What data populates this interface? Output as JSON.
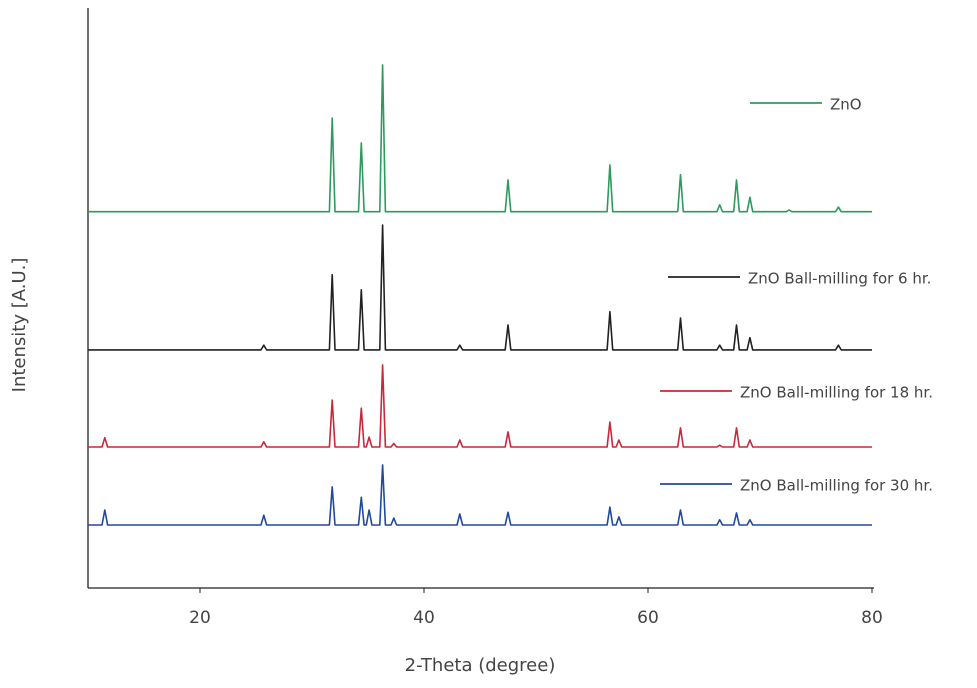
{
  "chart_data": {
    "type": "line",
    "xlabel": "2-Theta (degree)",
    "ylabel": "Intensity [A.U.]",
    "xlim": [
      10,
      80
    ],
    "xticks": [
      20,
      40,
      60,
      80
    ],
    "ylim": [
      0,
      100
    ],
    "x": [
      10,
      11.25,
      11.5,
      11.75,
      25.45,
      25.7,
      25.95,
      31.55,
      31.8,
      32.05,
      34.15,
      34.4,
      34.65,
      34.85,
      35.1,
      35.35,
      36.05,
      36.3,
      36.55,
      37.05,
      37.3,
      37.55,
      42.95,
      43.2,
      43.45,
      47.25,
      47.5,
      47.75,
      56.35,
      56.6,
      56.85,
      57.15,
      57.4,
      57.65,
      62.65,
      62.9,
      63.15,
      66.15,
      66.4,
      66.65,
      67.65,
      67.9,
      68.15,
      68.85,
      69.1,
      69.35,
      72.35,
      72.6,
      72.85,
      76.75,
      77,
      77.25,
      80
    ],
    "series": [
      {
        "name": "ZnO",
        "color": "#2e9a5e",
        "values": [
          65.1,
          65.1,
          65.1,
          65.1,
          65.1,
          65.1,
          65.1,
          65.1,
          81.3,
          65.1,
          65.1,
          77.0,
          65.1,
          65.1,
          65.1,
          65.1,
          65.1,
          90.5,
          65.1,
          65.1,
          65.1,
          65.1,
          65.1,
          65.1,
          65.1,
          65.1,
          70.6,
          65.1,
          65.1,
          73.2,
          65.1,
          65.1,
          65.1,
          65.1,
          65.1,
          71.5,
          65.1,
          65.1,
          66.3,
          65.1,
          65.1,
          70.6,
          65.1,
          65.1,
          67.6,
          65.1,
          65.1,
          65.4,
          65.1,
          65.1,
          65.9,
          65.1,
          65.1
        ]
      },
      {
        "name": "ZnO Ball-milling for 6 hr.",
        "color": "#222222",
        "values": [
          41.2,
          41.2,
          41.2,
          41.2,
          41.2,
          42.0,
          41.2,
          41.2,
          54.2,
          41.2,
          41.2,
          51.6,
          41.2,
          41.2,
          41.2,
          41.2,
          41.2,
          62.8,
          41.2,
          41.2,
          41.2,
          41.2,
          41.2,
          42.0,
          41.2,
          41.2,
          45.5,
          41.2,
          41.2,
          47.8,
          41.2,
          41.2,
          41.2,
          41.2,
          41.2,
          46.7,
          41.2,
          41.2,
          42.0,
          41.2,
          41.2,
          45.5,
          41.2,
          41.2,
          43.3,
          41.2,
          41.2,
          41.2,
          41.2,
          41.2,
          42.0,
          41.2,
          41.2
        ]
      },
      {
        "name": "ZnO Ball-milling for 18 hr.",
        "color": "#c8283a",
        "values": [
          24.4,
          24.4,
          26.0,
          24.4,
          24.4,
          25.3,
          24.4,
          24.4,
          32.5,
          24.4,
          24.4,
          31.1,
          24.4,
          24.4,
          26.1,
          24.4,
          24.4,
          38.6,
          24.4,
          24.4,
          25.0,
          24.4,
          24.4,
          25.6,
          24.4,
          24.4,
          27.0,
          24.4,
          24.4,
          28.7,
          24.4,
          24.4,
          25.6,
          24.4,
          24.4,
          27.7,
          24.4,
          24.4,
          24.7,
          24.4,
          24.4,
          27.7,
          24.4,
          24.4,
          25.6,
          24.4,
          24.4,
          24.4,
          24.4,
          24.4,
          24.4,
          24.4,
          24.4
        ]
      },
      {
        "name": "ZnO Ball-milling for 30 hr.",
        "color": "#2149a0",
        "values": [
          10.9,
          10.9,
          13.5,
          10.9,
          10.9,
          12.6,
          10.9,
          10.9,
          17.5,
          10.9,
          10.9,
          15.7,
          10.9,
          10.9,
          13.5,
          10.9,
          10.9,
          21.3,
          10.9,
          10.9,
          12.1,
          10.9,
          10.9,
          12.8,
          10.9,
          10.9,
          13.1,
          10.9,
          10.9,
          14.0,
          10.9,
          10.9,
          12.3,
          10.9,
          10.9,
          13.5,
          10.9,
          10.9,
          11.8,
          10.9,
          10.9,
          13.0,
          10.9,
          10.9,
          11.8,
          10.9,
          10.9,
          10.9,
          10.9,
          10.9,
          10.9,
          10.9,
          10.9
        ]
      }
    ]
  }
}
